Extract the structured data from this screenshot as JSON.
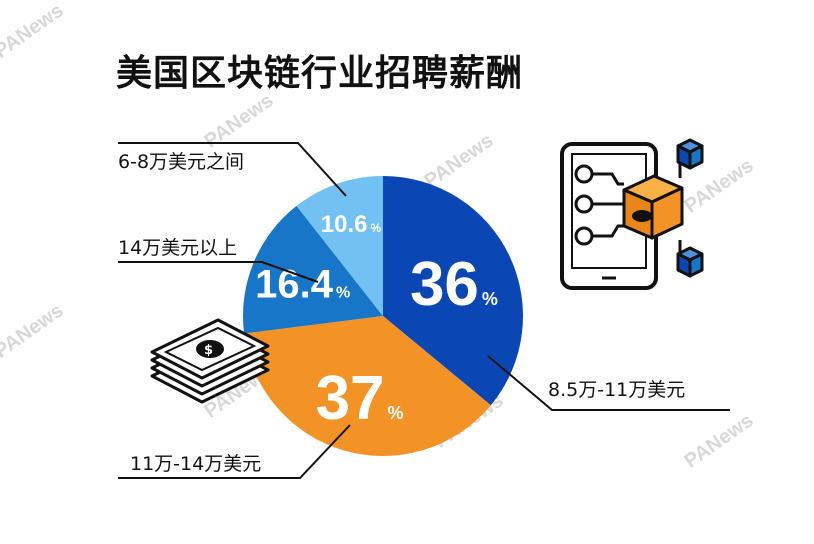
{
  "title": "美国区块链行业招聘薪酬",
  "watermark": "PANews",
  "percent_sign": "%",
  "chart_data": {
    "type": "pie",
    "title": "美国区块链行业招聘薪酬",
    "slices": [
      {
        "label": "8.5万-11万美元",
        "value": 36,
        "display": "36",
        "color": "#0a47b4"
      },
      {
        "label": "11万-14万美元",
        "value": 37,
        "display": "37",
        "color": "#f39325"
      },
      {
        "label": "14万美元以上",
        "value": 16.4,
        "display": "16.4",
        "color": "#1776c8"
      },
      {
        "label": "6-8万美元之间",
        "value": 10.6,
        "display": "10.6",
        "color": "#72c1f2"
      }
    ]
  },
  "icons": {
    "money": "money-stack-icon",
    "blockchain": "blockchain-tablet-icon"
  }
}
